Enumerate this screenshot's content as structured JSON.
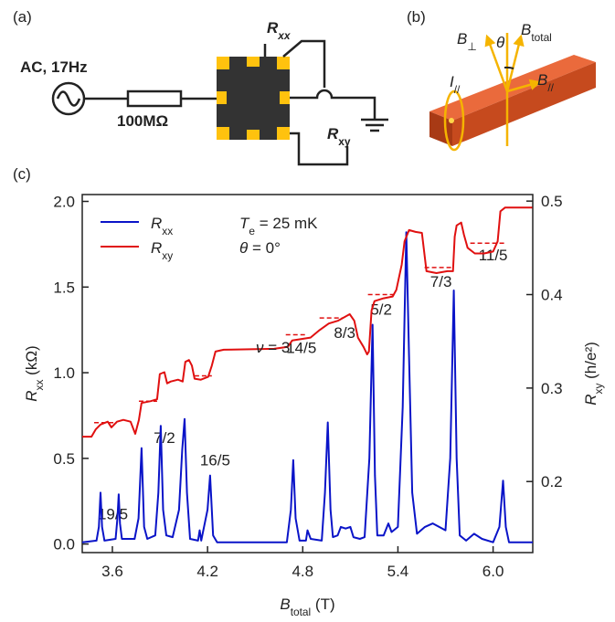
{
  "panels": {
    "a": {
      "label": "(a)",
      "source": "AC, 17Hz",
      "resistor": "100MΩ",
      "rxx": "Rxx",
      "rxy": "Rxy"
    },
    "b": {
      "label": "(b)",
      "b_perp": "B⊥",
      "theta": "θ",
      "b_total": "Btotal",
      "current": "I//",
      "b_par": "B//"
    },
    "c": {
      "label": "(c)"
    }
  },
  "chart_data": {
    "type": "line",
    "xlabel": "Btotal (T)",
    "ylabel": "Rxx (kΩ)",
    "y2label": "Rxy (h/e²)",
    "xlim": [
      3.41,
      6.25
    ],
    "xticks": [
      3.6,
      4.2,
      4.8,
      5.4,
      {
        "value": 6,
        "label": "6.0"
      }
    ],
    "ylim": [
      -0.05,
      2.04
    ],
    "yticks": [
      {
        "value": 0,
        "label": "0.0"
      },
      0.5,
      {
        "value": 1,
        "label": "1.0"
      },
      1.5,
      {
        "value": 2,
        "label": "2.0"
      }
    ],
    "y2lim": [
      0.124,
      0.507
    ],
    "y2ticks": [
      0.2,
      0.3,
      0.4,
      0.5
    ],
    "annotations": [
      "Te = 25 mK",
      "θ = 0°",
      "ν = 3"
    ],
    "plateaus": [
      {
        "label": "19/5",
        "x": [
          3.485,
          3.629
        ],
        "value": 0.263
      },
      {
        "label": "7/2",
        "x": [
          3.767,
          3.882
        ],
        "value": 0.286
      },
      {
        "label": "16/5",
        "x": [
          4.118,
          4.227
        ],
        "value": 0.313
      },
      {
        "label": "14/5",
        "x": [
          4.693,
          4.82
        ],
        "value": 0.357
      },
      {
        "label": "8/3",
        "x": [
          4.906,
          5.05
        ],
        "value": 0.375
      },
      {
        "label": "5/2",
        "x": [
          5.211,
          5.378
        ],
        "value": 0.4
      },
      {
        "label": "7/3",
        "x": [
          5.568,
          5.741
        ],
        "value": 0.429
      },
      {
        "label": "11/5",
        "x": [
          5.856,
          6.075
        ],
        "value": 0.455
      }
    ],
    "series": [
      {
        "name": "Rxx",
        "color": "#0a14c8",
        "x": [
          3.41,
          3.5,
          3.515,
          3.525,
          3.535,
          3.55,
          3.62,
          3.632,
          3.64,
          3.648,
          3.66,
          3.74,
          3.765,
          3.784,
          3.8,
          3.82,
          3.87,
          3.89,
          3.905,
          3.92,
          3.94,
          3.98,
          4.02,
          4.04,
          4.055,
          4.07,
          4.09,
          4.14,
          4.15,
          4.16,
          4.2,
          4.216,
          4.235,
          4.26,
          4.7,
          4.725,
          4.74,
          4.755,
          4.78,
          4.82,
          4.83,
          4.85,
          4.92,
          4.94,
          4.958,
          4.975,
          4.99,
          5.02,
          5.04,
          5.07,
          5.1,
          5.12,
          5.16,
          5.19,
          5.22,
          5.24,
          5.255,
          5.27,
          5.31,
          5.34,
          5.36,
          5.4,
          5.43,
          5.453,
          5.47,
          5.49,
          5.52,
          5.57,
          5.62,
          5.66,
          5.7,
          5.73,
          5.752,
          5.77,
          5.79,
          5.83,
          5.88,
          5.93,
          6.0,
          6.04,
          6.063,
          6.08,
          6.1,
          6.25
        ],
        "values": [
          0.01,
          0.02,
          0.1,
          0.3,
          0.1,
          0.02,
          0.03,
          0.15,
          0.29,
          0.12,
          0.03,
          0.03,
          0.15,
          0.56,
          0.1,
          0.03,
          0.05,
          0.3,
          0.69,
          0.2,
          0.05,
          0.04,
          0.2,
          0.55,
          0.73,
          0.3,
          0.03,
          0.02,
          0.08,
          0.02,
          0.2,
          0.4,
          0.05,
          0.01,
          0.01,
          0.2,
          0.49,
          0.15,
          0.02,
          0.02,
          0.08,
          0.03,
          0.02,
          0.3,
          0.71,
          0.2,
          0.04,
          0.05,
          0.1,
          0.09,
          0.1,
          0.04,
          0.03,
          0.04,
          0.5,
          1.28,
          0.4,
          0.05,
          0.05,
          0.12,
          0.07,
          0.1,
          0.8,
          1.82,
          1.1,
          0.3,
          0.06,
          0.1,
          0.12,
          0.1,
          0.08,
          0.5,
          1.48,
          0.5,
          0.05,
          0.02,
          0.06,
          0.03,
          0.01,
          0.1,
          0.37,
          0.1,
          0.01,
          0.01
        ]
      },
      {
        "name": "Rxy",
        "color": "#e01010",
        "axis": "y2",
        "x": [
          3.41,
          3.468,
          3.496,
          3.525,
          3.571,
          3.594,
          3.629,
          3.669,
          3.715,
          3.744,
          3.767,
          3.784,
          3.842,
          3.882,
          3.899,
          3.928,
          3.945,
          3.968,
          4.014,
          4.043,
          4.06,
          4.083,
          4.101,
          4.118,
          4.158,
          4.204,
          4.227,
          4.25,
          4.302,
          4.619,
          4.705,
          4.734,
          4.849,
          4.906,
          4.964,
          5.021,
          5.096,
          5.125,
          5.148,
          5.183,
          5.206,
          5.217,
          5.234,
          5.252,
          5.309,
          5.367,
          5.39,
          5.424,
          5.442,
          5.47,
          5.511,
          5.551,
          5.58,
          5.643,
          5.712,
          5.747,
          5.758,
          5.77,
          5.799,
          5.816,
          5.839,
          5.885,
          5.943,
          6.0,
          6.029,
          6.046,
          6.075,
          6.247
        ],
        "values": [
          0.248,
          0.248,
          0.256,
          0.261,
          0.264,
          0.258,
          0.264,
          0.266,
          0.264,
          0.251,
          0.266,
          0.284,
          0.286,
          0.288,
          0.315,
          0.317,
          0.305,
          0.307,
          0.309,
          0.307,
          0.328,
          0.33,
          0.324,
          0.31,
          0.309,
          0.312,
          0.324,
          0.339,
          0.341,
          0.342,
          0.344,
          0.351,
          0.354,
          0.362,
          0.369,
          0.372,
          0.379,
          0.372,
          0.354,
          0.344,
          0.336,
          0.339,
          0.383,
          0.393,
          0.396,
          0.398,
          0.405,
          0.432,
          0.457,
          0.469,
          0.467,
          0.466,
          0.425,
          0.423,
          0.425,
          0.425,
          0.462,
          0.474,
          0.477,
          0.464,
          0.45,
          0.444,
          0.444,
          0.446,
          0.457,
          0.489,
          0.493,
          0.493
        ]
      }
    ]
  }
}
